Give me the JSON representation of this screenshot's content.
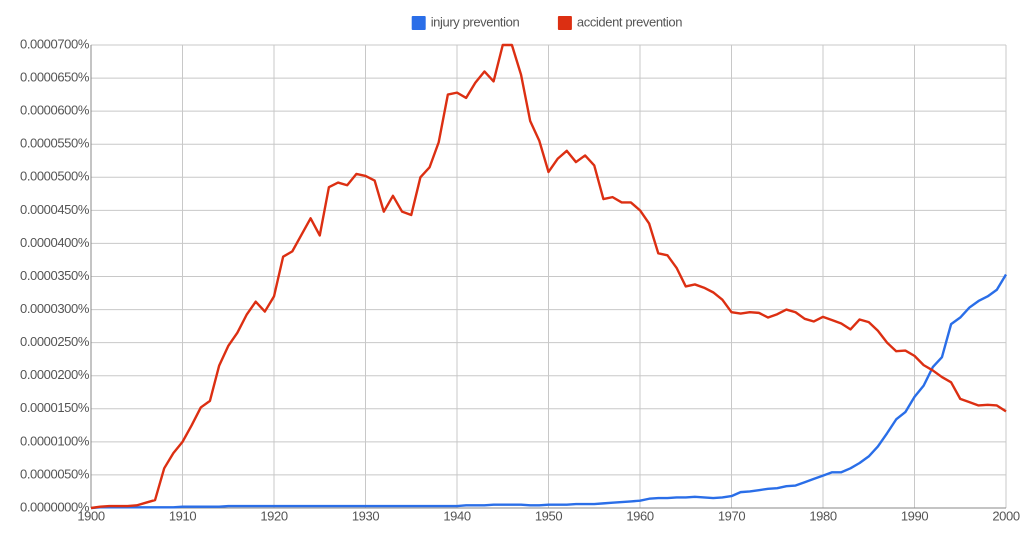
{
  "chart_data": {
    "type": "line",
    "series": [
      {
        "name": "injury prevention",
        "color": "#2a6ee8",
        "values": [
          0,
          1e-07,
          1e-07,
          1e-07,
          1e-07,
          1e-07,
          1e-07,
          1e-07,
          1e-07,
          1e-07,
          2e-07,
          2e-07,
          2e-07,
          2e-07,
          2e-07,
          3e-07,
          3e-07,
          3e-07,
          3e-07,
          3e-07,
          3e-07,
          3e-07,
          3e-07,
          3e-07,
          3e-07,
          3e-07,
          3e-07,
          3e-07,
          3e-07,
          3e-07,
          3e-07,
          3e-07,
          3e-07,
          3e-07,
          3e-07,
          3e-07,
          3e-07,
          3e-07,
          3e-07,
          3e-07,
          3e-07,
          4e-07,
          4e-07,
          4e-07,
          5e-07,
          5e-07,
          5e-07,
          5e-07,
          4e-07,
          4e-07,
          5e-07,
          5e-07,
          5e-07,
          6e-07,
          6e-07,
          6e-07,
          7e-07,
          8e-07,
          9e-07,
          1e-06,
          1.1e-06,
          1.4e-06,
          1.5e-06,
          1.5e-06,
          1.6e-06,
          1.6e-06,
          1.7e-06,
          1.6e-06,
          1.5e-06,
          1.6e-06,
          1.8e-06,
          2.4e-06,
          2.5e-06,
          2.7e-06,
          2.9e-06,
          3e-06,
          3.3e-06,
          3.4e-06,
          3.9e-06,
          4.4e-06,
          4.9e-06,
          5.4e-06,
          5.4e-06,
          6e-06,
          6.8e-06,
          7.8e-06,
          9.3e-06,
          1.13e-05,
          1.34e-05,
          1.45e-05,
          1.68e-05,
          1.85e-05,
          2.13e-05,
          2.28e-05,
          2.78e-05,
          2.88e-05,
          3.03e-05,
          3.13e-05,
          3.2e-05,
          3.3e-05,
          3.53e-05
        ]
      },
      {
        "name": "accident prevention",
        "color": "#dc2f12",
        "values": [
          0,
          2e-07,
          3e-07,
          3e-07,
          3e-07,
          4e-07,
          8e-07,
          1.2e-06,
          6e-06,
          8.3e-06,
          1e-05,
          1.25e-05,
          1.52e-05,
          1.62e-05,
          2.15e-05,
          2.45e-05,
          2.65e-05,
          2.92e-05,
          3.12e-05,
          2.97e-05,
          3.2e-05,
          3.8e-05,
          3.88e-05,
          4.13e-05,
          4.38e-05,
          4.12e-05,
          4.85e-05,
          4.92e-05,
          4.88e-05,
          5.05e-05,
          5.02e-05,
          4.95e-05,
          4.48e-05,
          4.72e-05,
          4.48e-05,
          4.43e-05,
          5e-05,
          5.15e-05,
          5.53e-05,
          6.25e-05,
          6.28e-05,
          6.2e-05,
          6.43e-05,
          6.6e-05,
          6.45e-05,
          7e-05,
          7e-05,
          6.55e-05,
          5.85e-05,
          5.55e-05,
          5.08e-05,
          5.28e-05,
          5.4e-05,
          5.23e-05,
          5.33e-05,
          5.18e-05,
          4.67e-05,
          4.7e-05,
          4.62e-05,
          4.62e-05,
          4.5e-05,
          4.3e-05,
          3.85e-05,
          3.82e-05,
          3.63e-05,
          3.35e-05,
          3.38e-05,
          3.33e-05,
          3.26e-05,
          3.15e-05,
          2.96e-05,
          2.94e-05,
          2.96e-05,
          2.95e-05,
          2.88e-05,
          2.93e-05,
          3e-05,
          2.96e-05,
          2.86e-05,
          2.82e-05,
          2.89e-05,
          2.84e-05,
          2.79e-05,
          2.7e-05,
          2.85e-05,
          2.81e-05,
          2.68e-05,
          2.5e-05,
          2.37e-05,
          2.38e-05,
          2.3e-05,
          2.16e-05,
          2.08e-05,
          1.98e-05,
          1.9e-05,
          1.65e-05,
          1.6e-05,
          1.55e-05,
          1.56e-05,
          1.55e-05,
          1.46e-05
        ]
      }
    ],
    "x": [
      1900,
      1901,
      1902,
      1903,
      1904,
      1905,
      1906,
      1907,
      1908,
      1909,
      1910,
      1911,
      1912,
      1913,
      1914,
      1915,
      1916,
      1917,
      1918,
      1919,
      1920,
      1921,
      1922,
      1923,
      1924,
      1925,
      1926,
      1927,
      1928,
      1929,
      1930,
      1931,
      1932,
      1933,
      1934,
      1935,
      1936,
      1937,
      1938,
      1939,
      1940,
      1941,
      1942,
      1943,
      1944,
      1945,
      1946,
      1947,
      1948,
      1949,
      1950,
      1951,
      1952,
      1953,
      1954,
      1955,
      1956,
      1957,
      1958,
      1959,
      1960,
      1961,
      1962,
      1963,
      1964,
      1965,
      1966,
      1967,
      1968,
      1969,
      1970,
      1971,
      1972,
      1973,
      1974,
      1975,
      1976,
      1977,
      1978,
      1979,
      1980,
      1981,
      1982,
      1983,
      1984,
      1985,
      1986,
      1987,
      1988,
      1989,
      1990,
      1991,
      1992,
      1993,
      1994,
      1995,
      1996,
      1997,
      1998,
      1999,
      2000
    ],
    "xlim": [
      1900,
      2000
    ],
    "xticks": [
      1900,
      1910,
      1920,
      1930,
      1940,
      1950,
      1960,
      1970,
      1980,
      1990,
      2000
    ],
    "ylim": [
      0,
      7e-05
    ],
    "yticks": [
      {
        "value": 0,
        "label": "0.0000000%"
      },
      {
        "value": 5e-06,
        "label": "0.0000050%"
      },
      {
        "value": 1e-05,
        "label": "0.0000100%"
      },
      {
        "value": 1.5e-05,
        "label": "0.0000150%"
      },
      {
        "value": 2e-05,
        "label": "0.0000200%"
      },
      {
        "value": 2.5e-05,
        "label": "0.0000250%"
      },
      {
        "value": 3e-05,
        "label": "0.0000300%"
      },
      {
        "value": 3.5e-05,
        "label": "0.0000350%"
      },
      {
        "value": 4e-05,
        "label": "0.0000400%"
      },
      {
        "value": 4.5e-05,
        "label": "0.0000450%"
      },
      {
        "value": 5e-05,
        "label": "0.0000500%"
      },
      {
        "value": 5.5e-05,
        "label": "0.0000550%"
      },
      {
        "value": 6e-05,
        "label": "0.0000600%"
      },
      {
        "value": 6.5e-05,
        "label": "0.0000650%"
      },
      {
        "value": 7e-05,
        "label": "0.0000700%"
      }
    ],
    "grid": true,
    "legend": "top"
  }
}
